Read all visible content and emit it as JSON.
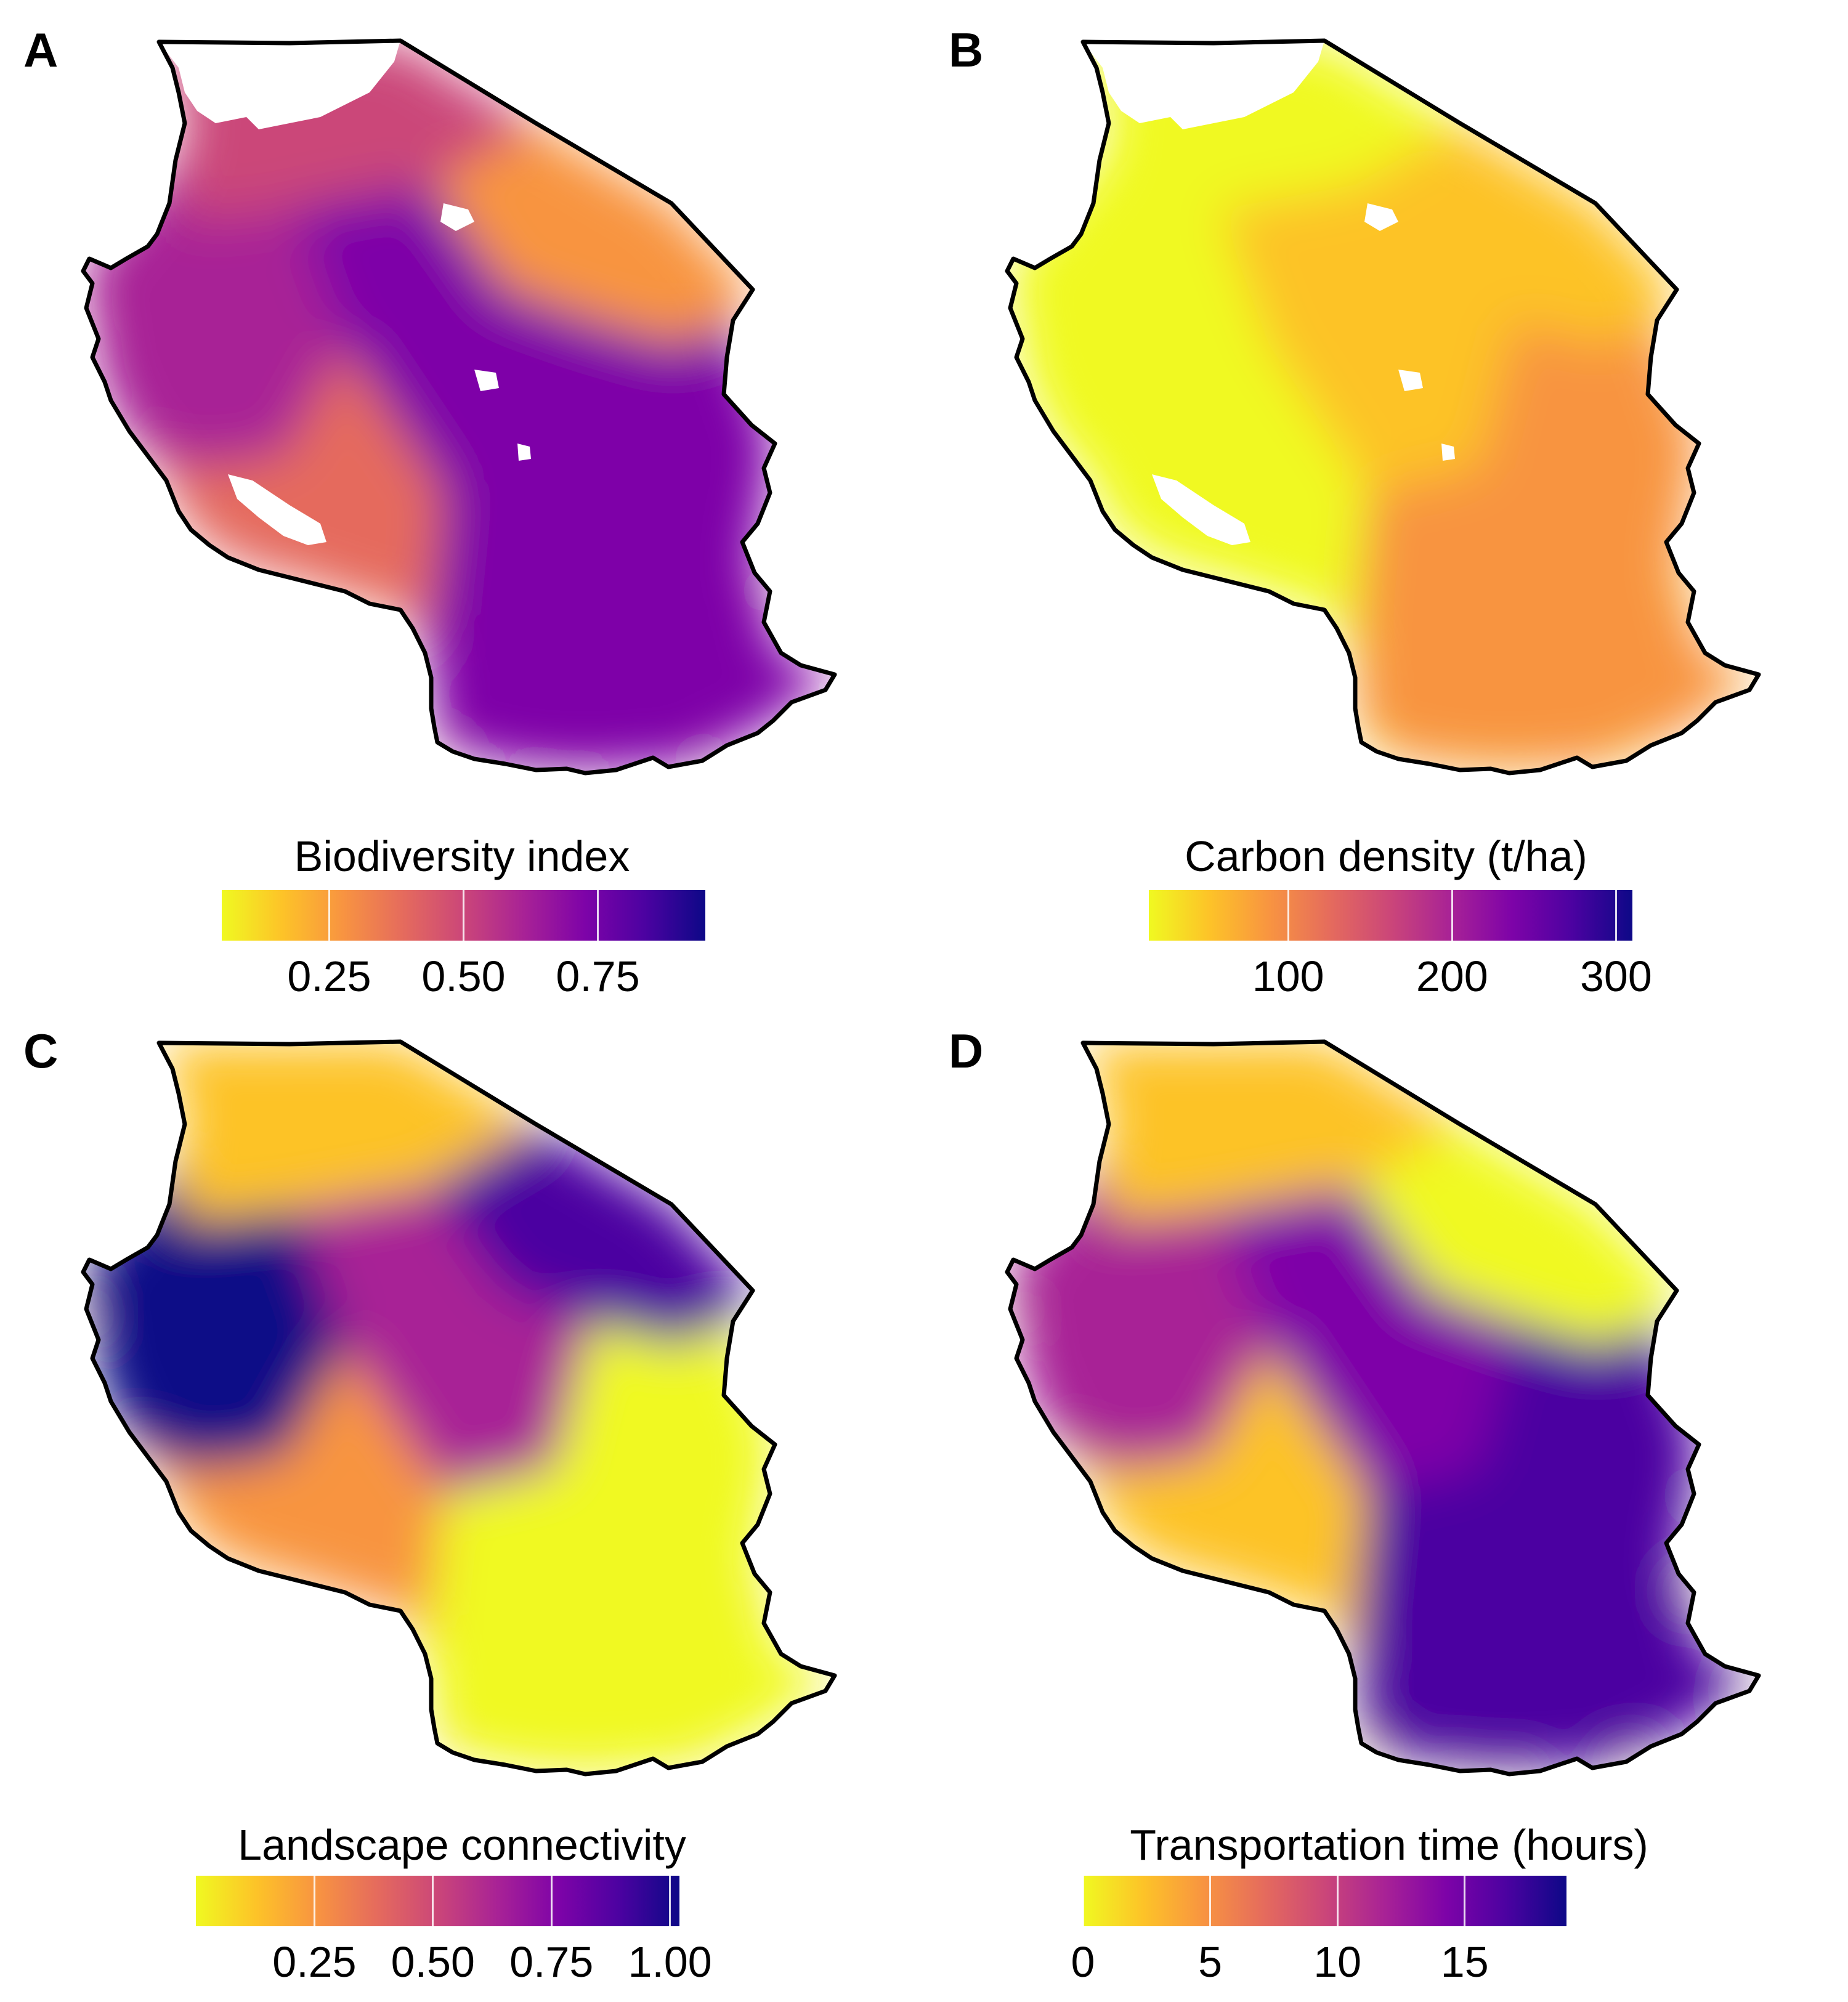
{
  "figure": {
    "colormap": [
      "#f0f921",
      "#fdc328",
      "#f89441",
      "#e56b5d",
      "#cb4679",
      "#a82296",
      "#7e03a8",
      "#4c02a1",
      "#0d0887"
    ],
    "outline_color": "#000000",
    "nodata_color": "#ffffff"
  },
  "panels": [
    {
      "letter": "A",
      "legend": {
        "title": "Biodiversity index",
        "ticks": [
          "0.25",
          "0.50",
          "0.75"
        ],
        "range": [
          0.05,
          0.95
        ],
        "tick_values": [
          0.25,
          0.5,
          0.75
        ]
      },
      "mean_colors": [
        "#cb4679",
        "#f89441",
        "#a82296",
        "#7e03a8",
        "#e56b5d",
        "#7e03a8"
      ]
    },
    {
      "letter": "B",
      "legend": {
        "title": "Carbon density (t/ha)",
        "ticks": [
          "100",
          "200",
          "300"
        ],
        "range": [
          15,
          310
        ],
        "tick_values": [
          100,
          200,
          300
        ]
      },
      "mean_colors": [
        "#f0f921",
        "#fdc328",
        "#f0f921",
        "#fdc328",
        "#f0f921",
        "#f89441"
      ]
    },
    {
      "letter": "C",
      "legend": {
        "title": "Landscape connectivity",
        "ticks": [
          "0.25",
          "0.50",
          "0.75",
          "1.00"
        ],
        "range": [
          0.0,
          1.02
        ],
        "tick_values": [
          0.25,
          0.5,
          0.75,
          1.0
        ]
      },
      "mean_colors": [
        "#fdc328",
        "#4c02a1",
        "#0d0887",
        "#a82296",
        "#f89441",
        "#f0f921"
      ]
    },
    {
      "letter": "D",
      "legend": {
        "title": "Transportation time (hours)",
        "ticks": [
          "0",
          "5",
          "10",
          "15"
        ],
        "range": [
          0,
          19
        ],
        "tick_values": [
          0,
          5,
          10,
          15
        ]
      },
      "mean_colors": [
        "#fdc328",
        "#f0f921",
        "#a82296",
        "#7e03a8",
        "#fdc328",
        "#4c02a1"
      ]
    }
  ]
}
